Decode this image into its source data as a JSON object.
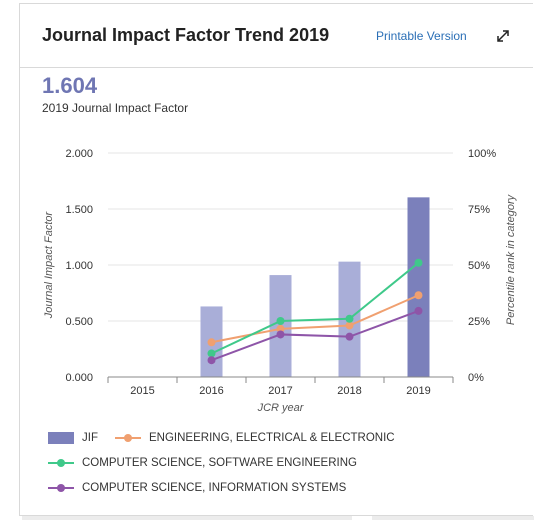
{
  "header": {
    "title": "Journal Impact Factor Trend 2019",
    "printable_label": "Printable Version",
    "expand_icon": "expand-arrows-icon"
  },
  "summary": {
    "jif_value": "1.604",
    "jif_label": "2019 Journal Impact Factor"
  },
  "chart_data": {
    "type": "bar",
    "categories": [
      "2015",
      "2016",
      "2017",
      "2018",
      "2019"
    ],
    "xlabel": "JCR year",
    "ylabel": "Journal Impact Factor",
    "y2label": "Percentile rank in category",
    "ylim": [
      0,
      2
    ],
    "y2lim": [
      0,
      100
    ],
    "yticks": [
      "0.000",
      "0.500",
      "1.000",
      "1.500",
      "2.000"
    ],
    "y2ticks": [
      "0%",
      "25%",
      "50%",
      "75%",
      "100%"
    ],
    "grid": true,
    "bars": {
      "name": "JIF",
      "values": [
        null,
        0.63,
        0.91,
        1.03,
        1.604
      ],
      "colors": [
        "#a9aed8",
        "#a9aed8",
        "#a9aed8",
        "#a9aed8",
        "#7b80bb"
      ]
    },
    "series": [
      {
        "name": "ENGINEERING, ELECTRICAL & ELECTRONIC",
        "color": "#f0a070",
        "values": [
          null,
          15.5,
          21.5,
          23,
          36.5
        ]
      },
      {
        "name": "COMPUTER SCIENCE, SOFTWARE ENGINEERING",
        "color": "#3fc98a",
        "values": [
          null,
          10.5,
          25,
          26,
          51
        ]
      },
      {
        "name": "COMPUTER SCIENCE, INFORMATION SYSTEMS",
        "color": "#8e55a8",
        "values": [
          null,
          7.5,
          19,
          18,
          29.5
        ]
      }
    ],
    "legend": "bottom"
  }
}
